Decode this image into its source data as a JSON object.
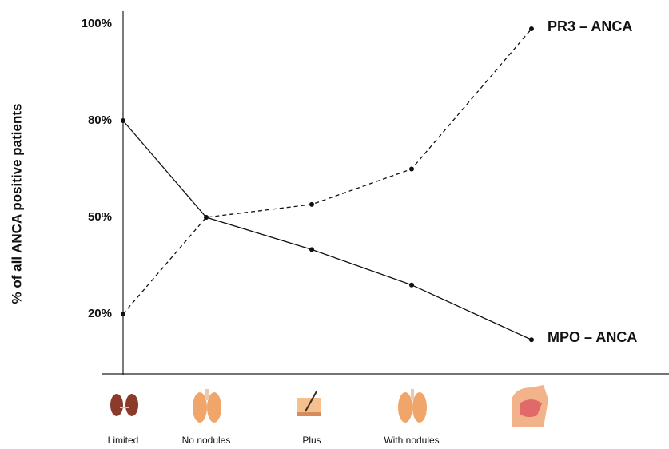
{
  "chart_data": {
    "type": "line",
    "y_label": "% of all ANCA positive patients",
    "categories": [
      "Limited",
      "No nodules",
      "Plus",
      "With nodules",
      null
    ],
    "series": [
      {
        "name": "PR3 – ANCA",
        "color": "#111111",
        "dashed": true,
        "values": [
          20,
          50,
          54,
          65,
          99
        ]
      },
      {
        "name": "MPO – ANCA",
        "color": "#111111",
        "dashed": false,
        "values": [
          80,
          50,
          40,
          29,
          12
        ]
      }
    ],
    "ylim": [
      0,
      102
    ],
    "yticks": [
      {
        "value": 20,
        "label": "20%"
      },
      {
        "value": 50,
        "label": "50%"
      },
      {
        "value": 80,
        "label": "80%"
      },
      {
        "value": 100,
        "label": "100%"
      }
    ]
  }
}
